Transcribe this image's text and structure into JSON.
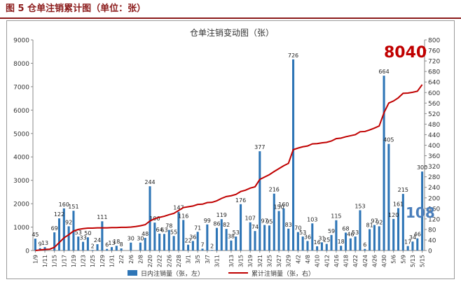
{
  "figure": {
    "title": "图 5  仓单注销累计图（单位：张）"
  },
  "colors": {
    "bar": "#2e75b6",
    "line": "#c00000",
    "title": "#8b1a1a",
    "big_left_value": "#4a7ebb"
  },
  "chart_data": {
    "type": "bar",
    "title": "仓单注销变动图（张）",
    "xlabel": "",
    "ylabel": "",
    "ylim": [
      0,
      9000
    ],
    "y2lim": [
      0,
      800
    ],
    "yticks": [
      "0",
      "1000",
      "2000",
      "3000",
      "4000",
      "5000",
      "6000",
      "7000",
      "8000",
      "9000"
    ],
    "y2ticks": [
      "0",
      "40",
      "80",
      "120",
      "160",
      "200",
      "240",
      "280",
      "320",
      "360",
      "400",
      "440",
      "480",
      "520",
      "560",
      "600",
      "640",
      "680",
      "720",
      "760",
      "800"
    ],
    "grid": false,
    "legend_position": "bottom",
    "x_tick_labels": [
      "1/9",
      "1/11",
      "1/15",
      "1/17",
      "1/19",
      "1/23",
      "1/25",
      "1/29",
      "1/31",
      "2/2",
      "2/6",
      "2/8",
      "2/20",
      "2/22",
      "2/26",
      "2/28",
      "3/1",
      "3/5",
      "3/7",
      "3/11",
      "3/13",
      "3/15",
      "3/19",
      "3/21",
      "3/25",
      "3/27",
      "3/29",
      "4/2",
      "4/8",
      "4/10",
      "4/12",
      "4/16",
      "4/18",
      "4/22",
      "4/24",
      "4/26",
      "4/30",
      "5/6",
      "5/9",
      "5/13",
      "5/15"
    ],
    "series": [
      {
        "name": "日内注销量（张，左）",
        "kind": "bar",
        "axis": "left",
        "values": [
          45,
          9,
          13,
          0,
          69,
          122,
          160,
          92,
          151,
          53,
          33,
          50,
          2,
          24,
          111,
          6,
          13,
          18,
          8,
          0,
          30,
          0,
          30,
          48,
          244,
          106,
          64,
          63,
          78,
          55,
          147,
          116,
          22,
          36,
          71,
          7,
          99,
          2,
          86,
          119,
          82,
          38,
          53,
          176,
          0,
          107,
          74,
          377,
          97,
          95,
          216,
          150,
          160,
          83,
          726,
          70,
          53,
          36,
          103,
          16,
          31,
          25,
          59,
          115,
          18,
          68,
          46,
          53,
          153,
          6,
          81,
          97,
          92,
          664,
          405,
          120,
          161,
          215,
          17,
          34,
          46,
          300
        ],
        "labels": [
          "45",
          "9",
          "13",
          "",
          "69",
          "122",
          "160",
          "92",
          "151",
          "53",
          "33",
          "50",
          "2",
          "24",
          "111",
          "6",
          "13",
          "18",
          "8",
          "",
          "30",
          "",
          "30",
          "48",
          "244",
          "106",
          "64",
          "63",
          "78",
          "55",
          "147",
          "116",
          "22",
          "36",
          "71",
          "7",
          "99",
          "2",
          "86",
          "119",
          "82",
          "38",
          "53",
          "176",
          "",
          "107",
          "74",
          "377",
          "97",
          "95",
          "216",
          "150",
          "160",
          "83",
          "726",
          "70",
          "53",
          "36",
          "103",
          "16",
          "31",
          "25",
          "59",
          "115",
          "18",
          "68",
          "46",
          "53",
          "153",
          "6",
          "81",
          "97",
          "92",
          "664",
          "405",
          "120",
          "161",
          "215",
          "17",
          "34",
          "46",
          "300"
        ]
      },
      {
        "name": "累计注销量（张，右）",
        "kind": "line",
        "axis": "right",
        "values": [
          0,
          2,
          4,
          5,
          12,
          30,
          48,
          60,
          74,
          80,
          83,
          85,
          85,
          86,
          86,
          86,
          87,
          87,
          88,
          88,
          89,
          91,
          94,
          98,
          112,
          121,
          126,
          130,
          136,
          141,
          152,
          163,
          166,
          169,
          175,
          176,
          182,
          183,
          189,
          198,
          205,
          208,
          213,
          224,
          229,
          237,
          242,
          270,
          279,
          288,
          300,
          311,
          322,
          331,
          383,
          389,
          394,
          397,
          405,
          406,
          409,
          411,
          416,
          425,
          427,
          432,
          436,
          440,
          451,
          452,
          458,
          465,
          473,
          523,
          560,
          568,
          580,
          597,
          598,
          601,
          605,
          630
        ]
      }
    ],
    "annotations": {
      "big_right": "8040",
      "big_left": "108"
    }
  }
}
